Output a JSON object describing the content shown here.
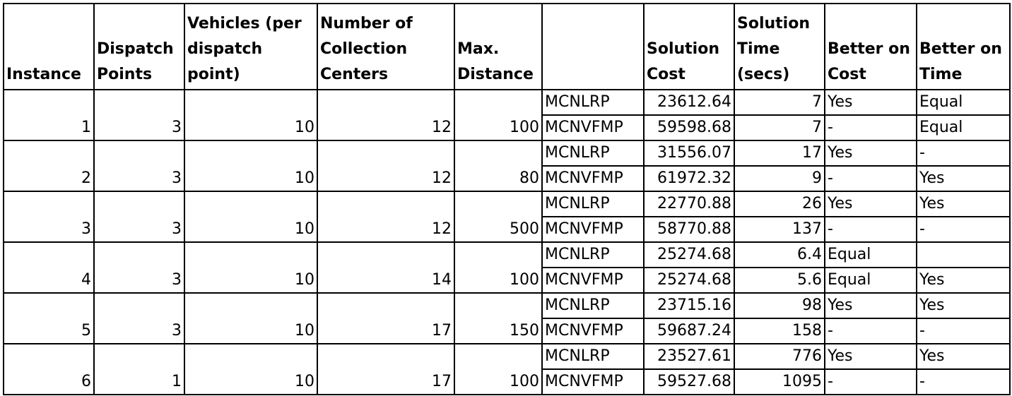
{
  "headers": [
    "Instance",
    "Dispatch Points",
    "Vehicles (per dispatch point)",
    "Number of Collection Centers",
    "Max. Distance",
    "",
    "Solution Cost",
    "Solution Time (secs)",
    "Better on Cost",
    "Better on Time"
  ],
  "groups": [
    {
      "instance": "1",
      "dispatch": "3",
      "vehicles": "10",
      "centers": "12",
      "maxdist": "100",
      "rows": [
        {
          "method": "MCNLRP",
          "cost": "23612.64",
          "time": "7",
          "better_cost": "Yes",
          "better_time": "Equal"
        },
        {
          "method": "MCNVFMP",
          "cost": "59598.68",
          "time": "7",
          "better_cost": "-",
          "better_time": "Equal"
        }
      ]
    },
    {
      "instance": "2",
      "dispatch": "3",
      "vehicles": "10",
      "centers": "12",
      "maxdist": "80",
      "rows": [
        {
          "method": "MCNLRP",
          "cost": "31556.07",
          "time": "17",
          "better_cost": "Yes",
          "better_time": "-"
        },
        {
          "method": "MCNVFMP",
          "cost": "61972.32",
          "time": "9",
          "better_cost": "-",
          "better_time": "Yes"
        }
      ]
    },
    {
      "instance": "3",
      "dispatch": "3",
      "vehicles": "10",
      "centers": "12",
      "maxdist": "500",
      "rows": [
        {
          "method": "MCNLRP",
          "cost": "22770.88",
          "time": "26",
          "better_cost": "Yes",
          "better_time": "Yes"
        },
        {
          "method": "MCNVFMP",
          "cost": "58770.88",
          "time": "137",
          "better_cost": "-",
          "better_time": "-"
        }
      ]
    },
    {
      "instance": "4",
      "dispatch": "3",
      "vehicles": "10",
      "centers": "14",
      "maxdist": "100",
      "rows": [
        {
          "method": "MCNLRP",
          "cost": "25274.68",
          "time": "6.4",
          "better_cost": "Equal",
          "better_time": ""
        },
        {
          "method": "MCNVFMP",
          "cost": "25274.68",
          "time": "5.6",
          "better_cost": "Equal",
          "better_time": "Yes"
        }
      ]
    },
    {
      "instance": "5",
      "dispatch": "3",
      "vehicles": "10",
      "centers": "17",
      "maxdist": "150",
      "rows": [
        {
          "method": "MCNLRP",
          "cost": "23715.16",
          "time": "98",
          "better_cost": "Yes",
          "better_time": "Yes"
        },
        {
          "method": "MCNVFMP",
          "cost": "59687.24",
          "time": "158",
          "better_cost": "-",
          "better_time": "-"
        }
      ]
    },
    {
      "instance": "6",
      "dispatch": "1",
      "vehicles": "10",
      "centers": "17",
      "maxdist": "100",
      "rows": [
        {
          "method": "MCNLRP",
          "cost": "23527.61",
          "time": "776",
          "better_cost": "Yes",
          "better_time": "Yes"
        },
        {
          "method": "MCNVFMP",
          "cost": "59527.68",
          "time": "1095",
          "better_cost": "-",
          "better_time": "-"
        }
      ]
    }
  ]
}
